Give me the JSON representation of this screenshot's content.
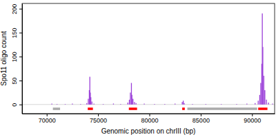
{
  "chart_data": {
    "type": "bar",
    "xlabel": "Genomic position on chrIII (bp)",
    "ylabel": "Spo11 oligo count",
    "x": [
      70500,
      71000,
      71800,
      72500,
      73300,
      73900,
      74050,
      74150,
      74200,
      74250,
      74300,
      74400,
      74600,
      75500,
      76500,
      77200,
      77900,
      78050,
      78150,
      78250,
      78300,
      78400,
      78550,
      78700,
      79500,
      80500,
      81500,
      82500,
      83200,
      83300,
      83400,
      84200,
      85500,
      87000,
      88500,
      89500,
      90300,
      90600,
      90750,
      90850,
      90950,
      91000,
      91050,
      91150,
      91250,
      91400,
      91600,
      92000
    ],
    "series": [
      {
        "color": "#9a3fd8",
        "values": [
          2,
          1,
          1,
          2,
          1,
          3,
          12,
          30,
          58,
          25,
          15,
          6,
          2,
          1,
          2,
          1,
          4,
          10,
          25,
          45,
          20,
          12,
          5,
          3,
          2,
          1,
          1,
          2,
          5,
          8,
          3,
          1,
          1,
          1,
          1,
          2,
          3,
          8,
          20,
          45,
          85,
          190,
          120,
          60,
          30,
          10,
          4,
          2
        ]
      }
    ],
    "intervals": [
      {
        "color": "#ff0000",
        "y": -9,
        "ranges": [
          [
            74000,
            74500
          ],
          [
            78000,
            78800
          ],
          [
            83200,
            83450
          ],
          [
            90600,
            91500
          ]
        ]
      },
      {
        "color": "#aaaaaa",
        "y": -9,
        "ranges": [
          [
            70600,
            71300
          ],
          [
            83700,
            90500
          ]
        ]
      }
    ],
    "xlim": [
      67600,
      92200
    ],
    "ylim": [
      -19,
      211
    ],
    "xticks": [
      70000,
      75000,
      80000,
      85000,
      90000
    ],
    "yticks": [
      0,
      50,
      100,
      150,
      200
    ]
  }
}
